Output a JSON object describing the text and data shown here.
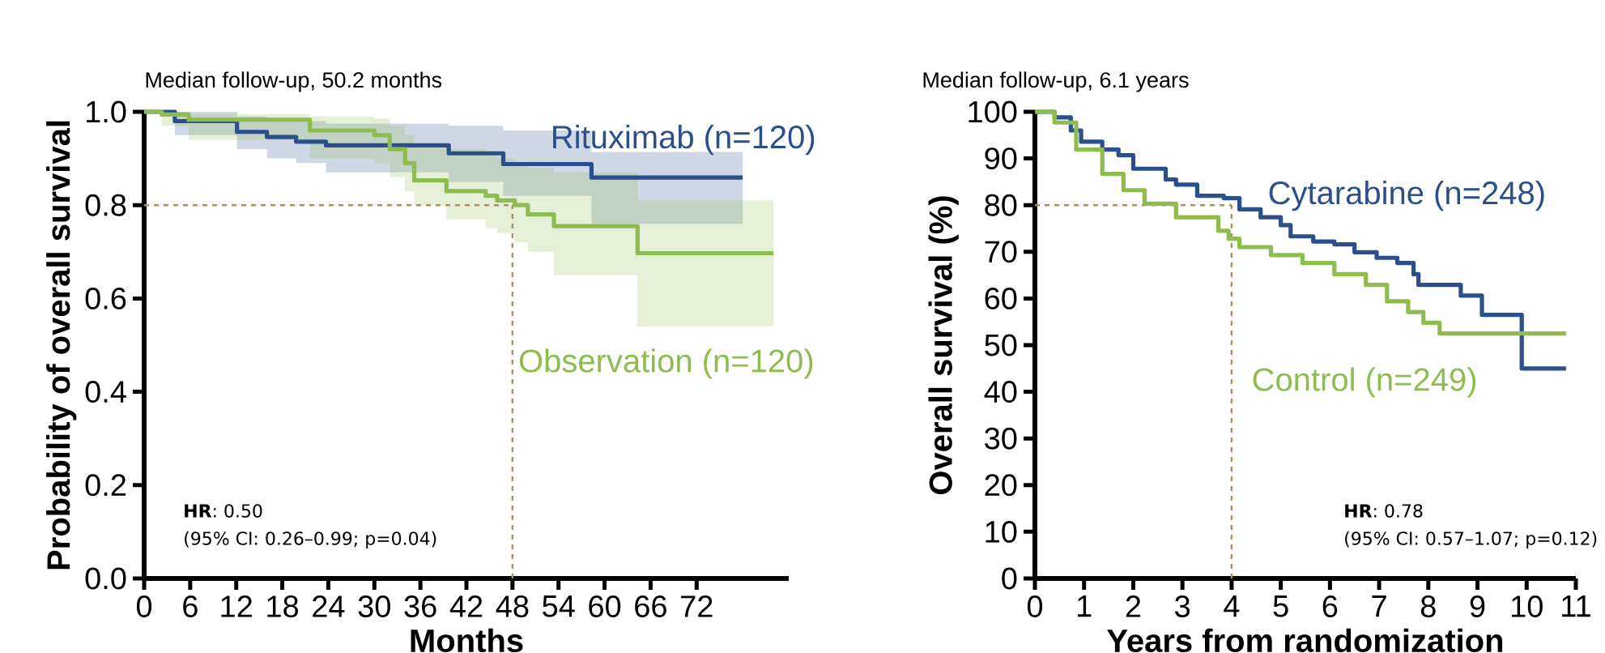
{
  "chart_data": [
    {
      "type": "step",
      "title": "Median follow-up, 50.2 months",
      "xlabel": "Months",
      "ylabel": "Probability of overall survival",
      "xlim": [
        0,
        84
      ],
      "xticks": [
        0,
        6,
        12,
        18,
        24,
        30,
        36,
        42,
        48,
        54,
        60,
        66,
        72
      ],
      "ylim": [
        0,
        1
      ],
      "yticks": [
        {
          "value": 0,
          "label": "0.0"
        },
        0.2,
        0.4,
        0.6,
        0.8,
        {
          "value": 1,
          "label": "1.0"
        }
      ],
      "series": [
        {
          "name": "Rituximab (n=120)",
          "color": "#2b4f8a",
          "x": [
            0,
            4,
            12.1,
            16,
            19.8,
            23.7,
            39.7,
            46.8,
            58.3,
            78
          ],
          "values": [
            1,
            0.98,
            0.957,
            0.946,
            0.936,
            0.928,
            0.911,
            0.888,
            0.859,
            0.859
          ],
          "upper": [
            1,
            1,
            0.99,
            0.985,
            0.98,
            0.975,
            0.97,
            0.96,
            0.914,
            0.914
          ],
          "lower": [
            1,
            0.95,
            0.92,
            0.9,
            0.89,
            0.87,
            0.85,
            0.82,
            0.76,
            0.76
          ]
        },
        {
          "name": "Observation (n=120)",
          "color": "#8fbc4f",
          "x": [
            0,
            2.3,
            5.8,
            21.6,
            30,
            32,
            34,
            35.2,
            39.4,
            44.5,
            46,
            48.3,
            50,
            53.4,
            64.3,
            82
          ],
          "values": [
            1,
            0.994,
            0.983,
            0.96,
            0.95,
            0.92,
            0.89,
            0.853,
            0.83,
            0.82,
            0.81,
            0.8,
            0.78,
            0.755,
            0.697,
            0.697
          ],
          "upper": [
            1,
            1,
            0.995,
            0.99,
            0.985,
            0.97,
            0.95,
            0.93,
            0.92,
            0.91,
            0.9,
            0.89,
            0.88,
            0.87,
            0.81,
            0.81
          ],
          "lower": [
            1,
            0.97,
            0.94,
            0.9,
            0.89,
            0.86,
            0.83,
            0.8,
            0.77,
            0.75,
            0.74,
            0.72,
            0.7,
            0.65,
            0.54,
            0.54
          ]
        }
      ],
      "ref_lines": [
        {
          "axis": "y",
          "value": 0.8,
          "color": "#a89060",
          "line_style": "dashed"
        },
        {
          "axis": "x",
          "value": 48,
          "color": "#a89060",
          "line_style": "dashed"
        }
      ],
      "annotations": [
        "**HR**: 0.50",
        "(95% CI: 0.26–0.99; p=0.04)"
      ]
    },
    {
      "type": "step",
      "title": "Median follow-up, 6.1 years",
      "xlabel": "Years from randomization",
      "ylabel": "Overall survival (%)",
      "xlim": [
        0,
        11
      ],
      "xticks": [
        0,
        1,
        2,
        3,
        4,
        5,
        6,
        7,
        8,
        9,
        10,
        11
      ],
      "ylim": [
        0,
        100
      ],
      "yticks": [
        0,
        10,
        20,
        30,
        40,
        50,
        60,
        70,
        80,
        90,
        100
      ],
      "series": [
        {
          "name": "Cytarabine (n=248)",
          "color": "#2b4f8a",
          "x": [
            0,
            0.4,
            0.73,
            0.94,
            1.37,
            1.7,
            2.0,
            2.66,
            2.87,
            3.3,
            3.84,
            4.16,
            4.59,
            5.0,
            5.2,
            5.66,
            6.09,
            6.5,
            6.95,
            7.37,
            7.7,
            7.8,
            8.55,
            8.66,
            9.09,
            9.9,
            10.8
          ],
          "values": [
            100,
            98.8,
            96,
            93.6,
            91.9,
            90.7,
            87.8,
            85.5,
            84.4,
            82,
            81.5,
            79.1,
            77.4,
            75.7,
            73.3,
            72.2,
            71.6,
            69.9,
            68.7,
            67.6,
            65.2,
            62.9,
            62.9,
            60.6,
            56.5,
            45,
            45
          ]
        },
        {
          "name": "Control (n=249)",
          "color": "#8fbc4f",
          "x": [
            0,
            0.4,
            0.84,
            1.37,
            1.8,
            2.23,
            2.87,
            3.73,
            3.94,
            4.16,
            4.8,
            5.44,
            6.09,
            6.73,
            7.16,
            7.59,
            7.9,
            8.23,
            10.8
          ],
          "values": [
            100,
            97.7,
            91.9,
            86.7,
            83.2,
            80.3,
            77.4,
            74.5,
            72.8,
            71,
            69.3,
            67.6,
            65.2,
            62.9,
            59.4,
            57.1,
            54.8,
            52.5,
            52.5
          ]
        }
      ],
      "ref_lines": [
        {
          "axis": "y",
          "value": 80,
          "color": "#a89060",
          "line_style": "dashed"
        },
        {
          "axis": "x",
          "value": 4,
          "color": "#a89060",
          "line_style": "dashed"
        }
      ],
      "annotations": [
        "**HR**: 0.78",
        "(95% CI: 0.57–1.07; p=0.12)"
      ]
    }
  ]
}
